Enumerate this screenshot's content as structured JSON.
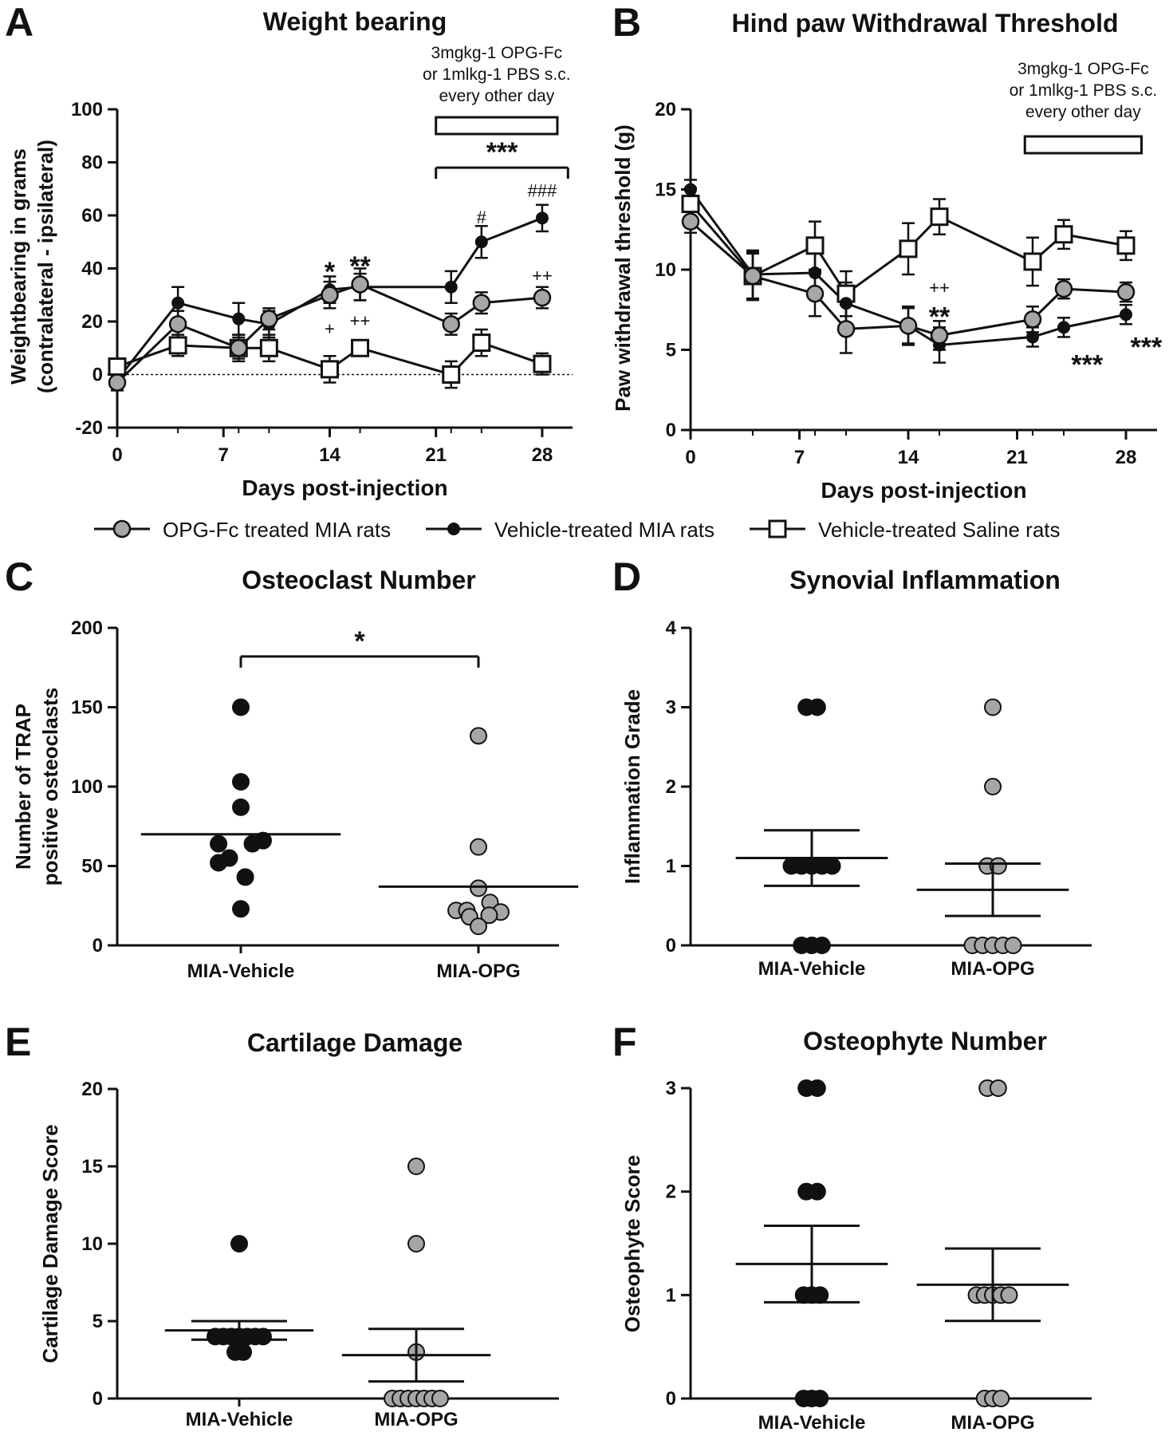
{
  "colors": {
    "opg": "#a6a6a6",
    "vehicle": "#111111",
    "saline": "#ffffff",
    "axis": "#111111"
  },
  "legend": [
    {
      "label": "OPG-Fc treated MIA rats",
      "marker": "circle",
      "color": "#a6a6a6"
    },
    {
      "label": "Vehicle-treated MIA rats",
      "marker": "dot",
      "color": "#111111"
    },
    {
      "label": "Vehicle-treated Saline rats",
      "marker": "square",
      "color": "#ffffff"
    }
  ],
  "chart_data": [
    {
      "id": "A",
      "type": "line",
      "title": "Weight bearing",
      "xlabel": "Days post-injection",
      "ylabel": [
        "Weightbearing in grams",
        "(contralateral - ipsilateral)"
      ],
      "xlim": [
        0,
        30
      ],
      "ylim": [
        -20,
        100
      ],
      "xticks": [
        0,
        7,
        14,
        21,
        28
      ],
      "yticks": [
        -20,
        0,
        20,
        40,
        60,
        80,
        100
      ],
      "dotted_zero": true,
      "treatment_note": [
        "3mgkg-1 OPG-Fc",
        "or 1mlkg-1 PBS s.c.",
        "every other day"
      ],
      "treatment_range": [
        21,
        29
      ],
      "series": [
        {
          "name": "Vehicle-treated Saline rats",
          "marker": "square",
          "x": [
            0,
            4,
            8,
            10,
            14,
            16,
            22,
            24,
            28
          ],
          "y": [
            3,
            11,
            10,
            10,
            2,
            10,
            0,
            12,
            4
          ],
          "err": [
            3,
            4,
            5,
            5,
            5,
            3,
            5,
            5,
            4
          ]
        },
        {
          "name": "Vehicle-treated MIA rats",
          "marker": "dot",
          "x": [
            0,
            4,
            8,
            10,
            14,
            16,
            22,
            24,
            28
          ],
          "y": [
            -2,
            27,
            21,
            19,
            32,
            33,
            33,
            50,
            59
          ],
          "err": [
            3,
            6,
            6,
            5,
            5,
            5,
            6,
            6,
            5
          ]
        },
        {
          "name": "OPG-Fc treated MIA rats",
          "marker": "circle",
          "x": [
            0,
            4,
            8,
            10,
            14,
            16,
            22,
            24,
            28
          ],
          "y": [
            -3,
            19,
            10,
            21,
            30,
            34,
            19,
            27,
            29
          ],
          "err": [
            3,
            5,
            4,
            4,
            5,
            6,
            4,
            4,
            4
          ]
        }
      ],
      "annotations": [
        {
          "text": "*",
          "x": 14,
          "y": 39,
          "size": "big"
        },
        {
          "text": "**",
          "x": 16,
          "y": 41,
          "size": "big"
        },
        {
          "text": "+",
          "x": 14,
          "y": 15,
          "size": "small"
        },
        {
          "text": "++",
          "x": 16,
          "y": 18,
          "size": "small"
        },
        {
          "text": "#",
          "x": 24,
          "y": 57,
          "size": "small"
        },
        {
          "text": "###",
          "x": 28,
          "y": 67,
          "size": "small"
        },
        {
          "text": "++",
          "x": 28,
          "y": 35,
          "size": "small"
        }
      ],
      "bracket": {
        "x0": 21,
        "x1": 29.7,
        "y": 78,
        "label": "***"
      }
    },
    {
      "id": "B",
      "type": "line",
      "title": "Hind paw Withdrawal Threshold",
      "xlabel": "Days post-injection",
      "ylabel": [
        "Paw withdrawal threshold (g)"
      ],
      "xlim": [
        0,
        30
      ],
      "ylim": [
        0,
        20
      ],
      "xticks": [
        0,
        7,
        14,
        21,
        28
      ],
      "yticks": [
        0,
        5,
        10,
        15,
        20
      ],
      "treatment_note": [
        "3mgkg-1 OPG-Fc",
        "or 1mlkg-1 PBS s.c.",
        "every other day"
      ],
      "treatment_range": [
        21.5,
        29
      ],
      "series": [
        {
          "name": "Vehicle-treated Saline rats",
          "marker": "square",
          "x": [
            0,
            4,
            8,
            10,
            14,
            16,
            22,
            24,
            28
          ],
          "y": [
            14.1,
            9.6,
            11.5,
            8.5,
            11.3,
            13.3,
            10.5,
            12.2,
            11.5
          ],
          "err": [
            1,
            1.5,
            1.5,
            1.4,
            1.6,
            1.1,
            1.5,
            0.9,
            0.9
          ]
        },
        {
          "name": "Vehicle-treated MIA rats",
          "marker": "dot",
          "x": [
            0,
            4,
            8,
            10,
            14,
            16,
            22,
            24,
            28
          ],
          "y": [
            15,
            9.7,
            9.8,
            7.9,
            6.5,
            5.3,
            5.8,
            6.4,
            7.2
          ],
          "err": [
            0.6,
            1.5,
            1.5,
            1.3,
            1.2,
            1.1,
            0.6,
            0.6,
            0.6
          ]
        },
        {
          "name": "OPG-Fc treated MIA rats",
          "marker": "circle",
          "x": [
            0,
            4,
            8,
            10,
            14,
            16,
            22,
            24,
            28
          ],
          "y": [
            13,
            9.6,
            8.5,
            6.3,
            6.5,
            5.9,
            6.9,
            8.8,
            8.6
          ],
          "err": [
            0.7,
            1.4,
            1.4,
            1.5,
            1.1,
            0.9,
            0.8,
            0.6,
            0.6
          ]
        }
      ],
      "annotations": [
        {
          "text": "++",
          "x": 16,
          "y": 8.5,
          "size": "small"
        },
        {
          "text": "**",
          "x": 16,
          "y": 7.1,
          "size": "big"
        },
        {
          "text": "***",
          "x": 25.5,
          "y": 4.1,
          "size": "big"
        },
        {
          "text": "***",
          "x": 29.3,
          "y": 5.2,
          "size": "big"
        }
      ]
    },
    {
      "id": "C",
      "type": "scatter",
      "title": "Osteoclast Number",
      "ylabel": [
        "Number of TRAP",
        "positive osteoclasts"
      ],
      "ylim": [
        0,
        200
      ],
      "yticks": [
        0,
        50,
        100,
        150,
        200
      ],
      "categories": [
        "MIA-Vehicle",
        "MIA-OPG"
      ],
      "bracket": {
        "y": 182,
        "label": "*"
      },
      "groups": [
        {
          "points": [
            [
              0,
              150
            ],
            [
              0,
              103
            ],
            [
              0,
              87
            ],
            [
              -0.25,
              64
            ],
            [
              0.13,
              64
            ],
            [
              0.25,
              66
            ],
            [
              -0.13,
              55
            ],
            [
              -0.25,
              52
            ],
            [
              0.05,
              43
            ],
            [
              0,
              23
            ]
          ],
          "mean": 70,
          "err": null
        },
        {
          "points": [
            [
              0,
              132
            ],
            [
              0,
              62
            ],
            [
              0,
              36
            ],
            [
              -0.25,
              22
            ],
            [
              -0.13,
              22
            ],
            [
              0.13,
              27
            ],
            [
              0.25,
              21
            ],
            [
              -0.1,
              18
            ],
            [
              0.12,
              19
            ],
            [
              0,
              12
            ]
          ],
          "mean": 37,
          "err": null
        }
      ]
    },
    {
      "id": "D",
      "type": "scatter",
      "title": "Synovial Inflammation",
      "ylabel": [
        "Inflammation Grade"
      ],
      "ylim": [
        0,
        4
      ],
      "yticks": [
        0,
        1,
        2,
        3,
        4
      ],
      "categories": [
        "MIA-Vehicle",
        "MIA-OPG"
      ],
      "groups": [
        {
          "points": [
            [
              -0.08,
              3
            ],
            [
              0.08,
              3
            ],
            [
              -0.3,
              1
            ],
            [
              -0.15,
              1
            ],
            [
              0,
              1
            ],
            [
              0.15,
              1
            ],
            [
              0.3,
              1
            ],
            [
              -0.15,
              0
            ],
            [
              0,
              0
            ],
            [
              0.15,
              0
            ]
          ],
          "mean": 1.1,
          "err": 0.35
        },
        {
          "points": [
            [
              0,
              3
            ],
            [
              0,
              2
            ],
            [
              -0.08,
              1
            ],
            [
              0.08,
              1
            ],
            [
              -0.3,
              0
            ],
            [
              -0.15,
              0
            ],
            [
              0,
              0
            ],
            [
              0.15,
              0
            ],
            [
              0.3,
              0
            ]
          ],
          "mean": 0.7,
          "err": 0.33
        }
      ]
    },
    {
      "id": "E",
      "type": "scatter",
      "title": "Cartilage Damage",
      "ylabel": [
        "Cartilage Damage Score"
      ],
      "ylim": [
        0,
        20
      ],
      "yticks": [
        0,
        5,
        10,
        15,
        20
      ],
      "categories": [
        "MIA-Vehicle",
        "MIA-OPG"
      ],
      "groups": [
        {
          "points": [
            [
              0,
              10
            ],
            [
              -0.36,
              4
            ],
            [
              -0.24,
              4
            ],
            [
              -0.12,
              4
            ],
            [
              0,
              4
            ],
            [
              0.12,
              4
            ],
            [
              0.24,
              4
            ],
            [
              0.36,
              4
            ],
            [
              -0.06,
              3
            ],
            [
              0.06,
              3
            ]
          ],
          "mean": 4.4,
          "err": 0.6
        },
        {
          "points": [
            [
              0,
              15
            ],
            [
              0,
              10
            ],
            [
              0,
              3
            ],
            [
              -0.36,
              0
            ],
            [
              -0.24,
              0
            ],
            [
              -0.12,
              0
            ],
            [
              0,
              0
            ],
            [
              0.12,
              0
            ],
            [
              0.24,
              0
            ],
            [
              0.36,
              0
            ]
          ],
          "mean": 2.8,
          "err": 1.7
        }
      ]
    },
    {
      "id": "F",
      "type": "scatter",
      "title": "Osteophyte Number",
      "ylabel": [
        "Osteophyte Score"
      ],
      "ylim": [
        0,
        3
      ],
      "yticks": [
        0,
        1,
        2,
        3
      ],
      "categories": [
        "MIA-Vehicle",
        "MIA-OPG"
      ],
      "groups": [
        {
          "points": [
            [
              -0.08,
              3
            ],
            [
              0.08,
              3
            ],
            [
              -0.08,
              2
            ],
            [
              0.08,
              2
            ],
            [
              -0.12,
              1
            ],
            [
              0,
              1
            ],
            [
              0.12,
              1
            ],
            [
              -0.12,
              0
            ],
            [
              0,
              0
            ],
            [
              0.12,
              0
            ]
          ],
          "mean": 1.3,
          "err": 0.37
        },
        {
          "points": [
            [
              -0.08,
              3
            ],
            [
              0.08,
              3
            ],
            [
              -0.24,
              1
            ],
            [
              -0.12,
              1
            ],
            [
              0,
              1
            ],
            [
              0.12,
              1
            ],
            [
              0.24,
              1
            ],
            [
              -0.12,
              0
            ],
            [
              0,
              0
            ],
            [
              0.12,
              0
            ]
          ],
          "mean": 1.1,
          "err": 0.35
        }
      ]
    }
  ]
}
